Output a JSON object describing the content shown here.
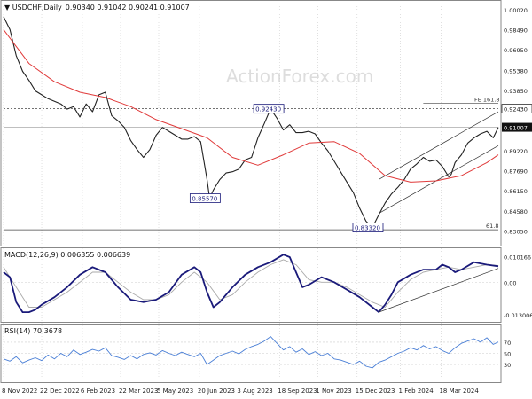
{
  "header": {
    "symbol": "USDCHF,Daily",
    "ohlc": "0.90340 0.91042 0.90241 0.91007"
  },
  "watermark": "ActionForex.com",
  "colors": {
    "price": "#222222",
    "ma": "#e03a3a",
    "macd": "#1a1a7a",
    "signal": "#aaaaaa",
    "rsi": "#4a7fd6",
    "grid": "#cccccc",
    "watermark": "#dddddd",
    "label_border": "#1a1a7a",
    "current_bg": "#111111"
  },
  "chart_data": [
    {
      "type": "line",
      "title": "USDCHF,Daily",
      "ylim": [
        0.82,
        1.005
      ],
      "yticks": [
        1.0002,
        0.9849,
        0.9695,
        0.9538,
        0.9385,
        0.9243,
        0.91007,
        0.8922,
        0.8769,
        0.8615,
        0.8458,
        0.8305
      ],
      "yticks_display": [
        "1.00020",
        "0.98490",
        "0.96950",
        "0.95380",
        "0.93850",
        "0.92430",
        "0.91007",
        "0.89220",
        "0.87690",
        "0.86150",
        "0.84580",
        "0.83050"
      ],
      "xticks": [
        "8 Nov 2022",
        "22 Dec 2022",
        "6 Feb 2023",
        "22 Mar 2023",
        "5 May 2023",
        "20 Jun 2023",
        "3 Aug 2023",
        "18 Sep 2023",
        "1 Nov 2023",
        "15 Dec 2023",
        "1 Feb 2024",
        "18 Mar 2024"
      ],
      "series": [
        {
          "role": "price",
          "x": [
            0,
            5,
            10,
            15,
            20,
            25,
            30,
            35,
            40,
            45,
            50,
            55,
            60,
            65,
            70,
            75,
            80,
            85,
            90,
            95,
            100,
            105,
            110,
            115,
            120,
            125,
            130,
            135,
            140,
            145,
            150,
            155,
            160,
            162,
            165,
            170,
            175,
            180,
            185,
            190,
            195,
            200,
            205,
            210,
            215,
            220,
            225,
            230,
            235,
            240,
            245,
            250,
            255,
            260,
            265,
            270,
            275,
            280,
            285,
            290,
            295,
            300,
            305,
            310,
            315,
            320,
            325,
            330,
            335,
            340,
            345,
            350,
            352,
            355,
            360,
            365,
            370,
            375,
            380,
            385,
            389
          ],
          "y": [
            0.995,
            0.985,
            0.965,
            0.953,
            0.946,
            0.938,
            0.935,
            0.932,
            0.93,
            0.928,
            0.924,
            0.926,
            0.918,
            0.928,
            0.922,
            0.935,
            0.937,
            0.919,
            0.915,
            0.91,
            0.9,
            0.893,
            0.887,
            0.893,
            0.904,
            0.91,
            0.907,
            0.904,
            0.901,
            0.901,
            0.903,
            0.899,
            0.87,
            0.8557,
            0.862,
            0.87,
            0.875,
            0.876,
            0.878,
            0.885,
            0.887,
            0.902,
            0.913,
            0.9243,
            0.917,
            0.908,
            0.912,
            0.906,
            0.906,
            0.907,
            0.905,
            0.898,
            0.892,
            0.884,
            0.876,
            0.868,
            0.86,
            0.848,
            0.838,
            0.8332,
            0.843,
            0.852,
            0.859,
            0.864,
            0.87,
            0.878,
            0.882,
            0.887,
            0.884,
            0.885,
            0.88,
            0.872,
            0.874,
            0.883,
            0.889,
            0.898,
            0.902,
            0.905,
            0.907,
            0.902,
            0.91007
          ]
        },
        {
          "role": "ma",
          "x": [
            0,
            20,
            40,
            60,
            80,
            100,
            120,
            140,
            160,
            180,
            200,
            220,
            240,
            260,
            280,
            300,
            320,
            340,
            360,
            380,
            389
          ],
          "y": [
            0.985,
            0.959,
            0.945,
            0.937,
            0.933,
            0.926,
            0.916,
            0.909,
            0.902,
            0.887,
            0.881,
            0.889,
            0.898,
            0.899,
            0.89,
            0.873,
            0.868,
            0.869,
            0.873,
            0.883,
            0.889
          ]
        }
      ],
      "levels": [
        {
          "label": "FE 161.8",
          "value": 0.9243
        },
        {
          "label": "61.8",
          "value": 0.8315
        }
      ],
      "annotations": [
        {
          "text": "0.92430",
          "x": 212,
          "y": 0.9243
        },
        {
          "text": "0.85570",
          "x": 162,
          "y": 0.8557
        },
        {
          "text": "0.83320",
          "x": 290,
          "y": 0.8332
        }
      ],
      "current_price": "0.91007",
      "fe_tag": "0.92430",
      "channel": [
        {
          "x": [
            295,
            389
          ],
          "y": [
            0.844,
            0.896
          ]
        },
        {
          "x": [
            295,
            389
          ],
          "y": [
            0.87,
            0.922
          ]
        }
      ]
    },
    {
      "type": "line",
      "title": "MACD(12,26,9) 0.006355 0.006639",
      "ylim": [
        -0.0155,
        0.0132
      ],
      "yticks": [
        0.010166,
        0.0,
        -0.013006
      ],
      "yticks_display": [
        "0.010166",
        "0.00",
        "-0.013006"
      ],
      "series": [
        {
          "role": "macd",
          "x": [
            0,
            5,
            10,
            15,
            20,
            25,
            30,
            40,
            50,
            60,
            70,
            80,
            90,
            100,
            110,
            120,
            130,
            140,
            150,
            155,
            160,
            165,
            170,
            180,
            190,
            200,
            210,
            220,
            225,
            230,
            235,
            240,
            250,
            260,
            270,
            280,
            290,
            295,
            300,
            305,
            310,
            320,
            330,
            340,
            345,
            350,
            355,
            360,
            370,
            380,
            389
          ],
          "y": [
            0.004,
            0.002,
            -0.008,
            -0.012,
            -0.012,
            -0.011,
            -0.009,
            -0.006,
            -0.002,
            0.003,
            0.006,
            0.004,
            -0.002,
            -0.007,
            -0.008,
            -0.007,
            -0.004,
            0.003,
            0.006,
            0.004,
            -0.004,
            -0.01,
            -0.008,
            -0.002,
            0.003,
            0.006,
            0.008,
            0.011,
            0.01,
            0.004,
            -0.002,
            -0.001,
            0.002,
            0.0,
            -0.003,
            -0.006,
            -0.01,
            -0.012,
            -0.009,
            -0.005,
            0.0,
            0.003,
            0.005,
            0.005,
            0.007,
            0.006,
            0.004,
            0.005,
            0.008,
            0.007,
            0.006355
          ]
        },
        {
          "role": "signal",
          "x": [
            0,
            10,
            20,
            30,
            40,
            50,
            60,
            70,
            80,
            90,
            100,
            110,
            120,
            130,
            140,
            150,
            160,
            170,
            180,
            190,
            200,
            210,
            220,
            230,
            240,
            250,
            260,
            270,
            280,
            290,
            300,
            310,
            320,
            330,
            340,
            350,
            360,
            370,
            380,
            389
          ],
          "y": [
            0.006,
            -0.002,
            -0.01,
            -0.01,
            -0.007,
            -0.004,
            0.0,
            0.004,
            0.004,
            0.0,
            -0.004,
            -0.007,
            -0.007,
            -0.005,
            0.0,
            0.004,
            0.0,
            -0.007,
            -0.005,
            0.0,
            0.004,
            0.007,
            0.009,
            0.007,
            0.001,
            0.0,
            0.0,
            -0.002,
            -0.005,
            -0.008,
            -0.01,
            -0.004,
            0.001,
            0.004,
            0.005,
            0.006,
            0.005,
            0.006,
            0.007,
            0.006639
          ]
        }
      ],
      "trendline": {
        "x": [
          295,
          389
        ],
        "y": [
          -0.012,
          0.0055
        ]
      }
    },
    {
      "type": "line",
      "title": "RSI(14) 70.3678",
      "ylim": [
        0,
        100
      ],
      "yticks": [
        70,
        50,
        30
      ],
      "series": [
        {
          "role": "rsi",
          "x": [
            0,
            5,
            10,
            15,
            20,
            25,
            30,
            35,
            40,
            45,
            50,
            55,
            60,
            65,
            70,
            75,
            80,
            85,
            90,
            95,
            100,
            105,
            110,
            115,
            120,
            125,
            130,
            135,
            140,
            145,
            150,
            155,
            160,
            165,
            170,
            175,
            180,
            185,
            190,
            195,
            200,
            205,
            210,
            215,
            220,
            225,
            230,
            235,
            240,
            245,
            250,
            255,
            260,
            265,
            270,
            275,
            280,
            285,
            290,
            295,
            300,
            305,
            310,
            315,
            320,
            325,
            330,
            335,
            340,
            345,
            350,
            355,
            360,
            365,
            370,
            375,
            380,
            385,
            389
          ],
          "y": [
            40,
            36,
            44,
            33,
            38,
            42,
            37,
            47,
            40,
            50,
            44,
            56,
            48,
            52,
            57,
            54,
            60,
            46,
            43,
            39,
            46,
            40,
            48,
            51,
            47,
            55,
            50,
            46,
            52,
            48,
            44,
            50,
            30,
            38,
            46,
            50,
            54,
            49,
            57,
            62,
            66,
            72,
            80,
            68,
            56,
            62,
            52,
            58,
            48,
            53,
            46,
            50,
            40,
            38,
            34,
            30,
            36,
            27,
            24,
            34,
            38,
            44,
            50,
            54,
            60,
            56,
            64,
            58,
            62,
            55,
            50,
            60,
            68,
            72,
            76,
            70,
            78,
            66,
            70.3678
          ]
        }
      ]
    }
  ]
}
